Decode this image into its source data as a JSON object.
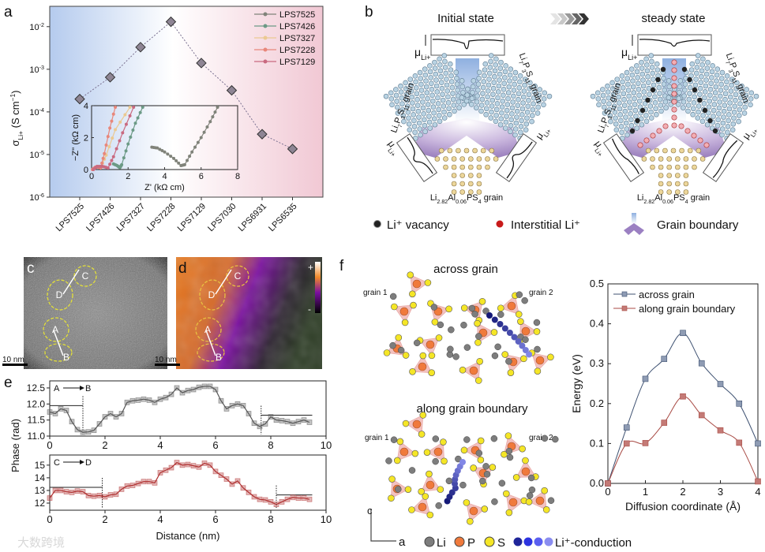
{
  "panels": {
    "a": "a",
    "b": "b",
    "c": "c",
    "d": "d",
    "e": "e",
    "f": "f"
  },
  "chart_data": [
    {
      "id": "a-main",
      "type": "line",
      "ylabel": "σLi+ (S cm−1)",
      "ylabel_parts": [
        [
          "σ",
          ""
        ],
        [
          "Li+",
          "sub"
        ],
        [
          " (S cm",
          ""
        ],
        [
          "−1",
          "sup"
        ],
        [
          ")",
          ""
        ]
      ],
      "yscale": "log",
      "ylim": [
        1e-06,
        0.03
      ],
      "yticks": [
        {
          "v": 1e-06,
          "label": "10",
          "exp": "-6"
        },
        {
          "v": 1e-05,
          "label": "10",
          "exp": "-5"
        },
        {
          "v": 0.0001,
          "label": "10",
          "exp": "-4"
        },
        {
          "v": 0.001,
          "label": "10",
          "exp": "-3"
        },
        {
          "v": 0.01,
          "label": "10",
          "exp": "-2"
        }
      ],
      "categories": [
        "LPS7525",
        "LPS7426",
        "LPS7327",
        "LPS7228",
        "LPS7129",
        "LPS7030",
        "LPS6931",
        "LPS6535"
      ],
      "values": [
        0.0002,
        0.00065,
        0.0033,
        0.013,
        0.0014,
        0.00032,
        3e-05,
        1.35e-05
      ],
      "marker": "diamond",
      "marker_color": "#8e8594",
      "background": [
        "#b7cdee",
        "#ffffff",
        "#f2cbd6"
      ]
    },
    {
      "id": "a-inset",
      "type": "line",
      "xlabel": "Z' (kΩ cm)",
      "ylabel": "−Z'' (kΩ cm)",
      "xlim": [
        0,
        8
      ],
      "ylim": [
        0,
        4
      ],
      "xticks": [
        "0",
        "2",
        "4",
        "6",
        "8"
      ],
      "yticks": [
        "0",
        "2",
        "4"
      ],
      "legend_position": "top-right of main plot",
      "series": [
        {
          "name": "LPS7525",
          "color": "#80837a",
          "points": [
            [
              3.3,
              1.4
            ],
            [
              3.6,
              1.35
            ],
            [
              4.0,
              1.1
            ],
            [
              4.5,
              0.7
            ],
            [
              4.9,
              0.25
            ],
            [
              5.1,
              0.3
            ],
            [
              5.5,
              1.1
            ],
            [
              6.0,
              2.0
            ],
            [
              6.5,
              3.0
            ],
            [
              6.9,
              3.9
            ]
          ]
        },
        {
          "name": "LPS7426",
          "color": "#6c9a86",
          "points": [
            [
              1.2,
              0.35
            ],
            [
              1.4,
              0.25
            ],
            [
              1.55,
              0.12
            ],
            [
              1.65,
              0.3
            ],
            [
              2.0,
              1.6
            ],
            [
              2.4,
              2.9
            ],
            [
              2.8,
              3.9
            ]
          ]
        },
        {
          "name": "LPS7327",
          "color": "#ebc992",
          "points": [
            [
              0.05,
              0
            ],
            [
              0.3,
              0.2
            ],
            [
              0.5,
              0.15
            ],
            [
              0.8,
              0.9
            ],
            [
              1.3,
              2.5
            ],
            [
              2.1,
              3.9
            ]
          ]
        },
        {
          "name": "LPS7228",
          "color": "#e8877b",
          "points": [
            [
              0.05,
              0
            ],
            [
              0.2,
              0.15
            ],
            [
              0.35,
              0.15
            ],
            [
              0.5,
              0.1
            ],
            [
              0.7,
              1.0
            ],
            [
              1.0,
              2.6
            ],
            [
              1.3,
              3.9
            ]
          ]
        },
        {
          "name": "LPS7129",
          "color": "#c96a80",
          "points": [
            [
              0.1,
              0
            ],
            [
              0.3,
              0.2
            ],
            [
              0.6,
              0.2
            ],
            [
              0.9,
              0.1
            ],
            [
              1.2,
              0.8
            ],
            [
              1.7,
              2.3
            ],
            [
              2.3,
              3.9
            ]
          ]
        }
      ]
    },
    {
      "id": "e-top",
      "type": "line",
      "annotation": "A → B",
      "arrow_from": "A",
      "arrow_to": "B",
      "xlim": [
        0,
        10
      ],
      "ylim": [
        11.0,
        12.72
      ],
      "xticks": [
        "0",
        "2",
        "4",
        "6",
        "8",
        "10"
      ],
      "yticks": [
        "11.0",
        "11.5",
        "12.0",
        "12.5"
      ],
      "color": "#555555",
      "levels": [
        {
          "x0": 0,
          "x1": 1.2,
          "y": 11.95
        },
        {
          "x0": 7.65,
          "x1": 9.5,
          "y": 11.65
        }
      ],
      "dividers": [
        1.2,
        7.65
      ],
      "x": [
        0,
        0.2,
        0.4,
        0.6,
        0.8,
        1.0,
        1.2,
        1.4,
        1.6,
        1.8,
        2.0,
        2.2,
        2.4,
        2.6,
        2.8,
        3.0,
        3.2,
        3.4,
        3.6,
        3.8,
        4.0,
        4.2,
        4.4,
        4.6,
        4.8,
        5.0,
        5.2,
        5.4,
        5.6,
        5.8,
        6.0,
        6.2,
        6.4,
        6.6,
        6.8,
        7.0,
        7.2,
        7.4,
        7.6,
        7.8,
        8.0,
        8.2,
        8.4,
        8.6,
        8.8,
        9.0,
        9.2,
        9.4
      ],
      "y": [
        11.75,
        11.7,
        11.85,
        11.8,
        11.45,
        11.2,
        11.12,
        11.13,
        11.18,
        11.38,
        11.6,
        11.7,
        11.6,
        11.7,
        12.05,
        12.1,
        12.12,
        12.15,
        12.12,
        12.05,
        12.15,
        12.2,
        12.3,
        12.5,
        12.35,
        12.42,
        12.45,
        12.52,
        12.55,
        12.55,
        12.45,
        12.1,
        11.85,
        11.95,
        12.0,
        11.95,
        11.7,
        11.4,
        11.3,
        11.38,
        11.6,
        11.5,
        11.48,
        11.45,
        11.4,
        11.45,
        11.5,
        11.43
      ]
    },
    {
      "id": "e-bottom",
      "type": "line",
      "annotation": "C → D",
      "arrow_from": "C",
      "arrow_to": "D",
      "xlabel": "Distance (nm)",
      "ylabel": "Phase (rad)",
      "xlim": [
        0,
        10
      ],
      "ylim": [
        11.44,
        15.8
      ],
      "xticks": [
        "0",
        "2",
        "4",
        "6",
        "8",
        "10"
      ],
      "yticks": [
        "12",
        "13",
        "14",
        "15"
      ],
      "color": "#b03030",
      "levels": [
        {
          "x0": 0,
          "x1": 1.9,
          "y": 13.25
        },
        {
          "x0": 8.2,
          "x1": 9.5,
          "y": 12.65
        }
      ],
      "dividers": [
        1.9,
        8.2
      ],
      "x": [
        0,
        0.2,
        0.4,
        0.6,
        0.8,
        1.0,
        1.2,
        1.4,
        1.6,
        1.8,
        2.0,
        2.2,
        2.4,
        2.6,
        2.8,
        3.0,
        3.2,
        3.4,
        3.6,
        3.8,
        4.0,
        4.2,
        4.4,
        4.6,
        4.8,
        5.0,
        5.2,
        5.4,
        5.6,
        5.8,
        6.0,
        6.2,
        6.4,
        6.6,
        6.8,
        7.0,
        7.2,
        7.4,
        7.6,
        7.8,
        8.0,
        8.2,
        8.4,
        8.6,
        8.8,
        9.0,
        9.2,
        9.4
      ],
      "y": [
        12.4,
        13.0,
        13.0,
        12.9,
        12.85,
        12.95,
        12.9,
        12.6,
        12.55,
        12.6,
        12.5,
        12.65,
        12.7,
        13.1,
        13.35,
        13.4,
        13.55,
        13.7,
        13.7,
        13.6,
        14.4,
        14.6,
        14.8,
        15.2,
        15.0,
        15.05,
        14.95,
        14.85,
        15.15,
        15.0,
        14.5,
        14.2,
        13.9,
        13.5,
        13.75,
        13.2,
        12.85,
        12.5,
        12.3,
        12.25,
        12.1,
        11.9,
        12.1,
        12.3,
        12.45,
        12.4,
        12.4,
        12.3
      ]
    },
    {
      "id": "f-energy",
      "type": "line",
      "xlabel": "Diffusion coordinate (Å)",
      "ylabel": "Energy (eV)",
      "xlim": [
        0,
        4
      ],
      "ylim": [
        0,
        0.5
      ],
      "xticks": [
        "0",
        "1",
        "2",
        "3",
        "4"
      ],
      "yticks": [
        "0.0",
        "0.1",
        "0.2",
        "0.3",
        "0.4",
        "0.5"
      ],
      "legend_position": "top-left",
      "x": [
        0,
        0.5,
        1,
        1.5,
        2,
        2.5,
        3,
        3.5,
        4
      ],
      "series": [
        {
          "name": "across grain",
          "color": "#3f5272",
          "marker_color": "#8e9bb3",
          "values": [
            0,
            0.14,
            0.262,
            0.312,
            0.377,
            0.301,
            0.249,
            0.2,
            0.1
          ]
        },
        {
          "name": "along grain boundary",
          "color": "#a84a44",
          "marker_color": "#c47a76",
          "values": [
            0,
            0.1,
            0.101,
            0.152,
            0.218,
            0.171,
            0.133,
            0.102,
            0.005
          ]
        }
      ]
    }
  ],
  "b": {
    "initial_title": "Initial state",
    "steady_title": "steady state",
    "mu": [
      [
        "μ",
        ""
      ],
      [
        "Li+",
        "sub"
      ]
    ],
    "upper_grain": [
      [
        "Li",
        ""
      ],
      [
        "7",
        "sub"
      ],
      [
        "P",
        ""
      ],
      [
        "3",
        "sub"
      ],
      [
        "S",
        ""
      ],
      [
        "11",
        "sub"
      ],
      [
        " grain",
        ""
      ]
    ],
    "lower_grain": [
      [
        "Li",
        ""
      ],
      [
        "2.82",
        "sub"
      ],
      [
        "Al",
        ""
      ],
      [
        "0.06",
        "sub"
      ],
      [
        "PS",
        ""
      ],
      [
        "4",
        "sub"
      ],
      [
        " grain",
        ""
      ]
    ],
    "legend": {
      "vacancy": "Li⁺ vacancy",
      "interstitial": "Interstitial Li⁺",
      "grain_boundary": "Grain boundary"
    },
    "colors": {
      "upper": "#b9d3e3",
      "lower": "#ecd69a",
      "vacancy": "#222222",
      "interstitial": "#f2aeb4",
      "boundary_blue": "#8fb0e0",
      "boundary_purple": "#8e6fb5"
    }
  },
  "c": {
    "label_A": "A",
    "label_B": "B",
    "label_C": "C",
    "label_D": "D",
    "scale": "10 nm"
  },
  "d": {
    "label_A": "A",
    "label_B": "B",
    "label_C": "C",
    "label_D": "D",
    "scale": "10 nm",
    "plus": "+",
    "minus": "-"
  },
  "f": {
    "across_title": "across grain",
    "along_title": "along grain boundary",
    "grain1": "grain 1",
    "grain2": "grain 2",
    "axis_c": "c",
    "axis_a": "a",
    "legend": {
      "li": "Li",
      "p": "P",
      "s": "S",
      "conduction": "Li⁺-conduction"
    },
    "colors": {
      "li": "#7d7d7d",
      "p": "#f07a3c",
      "s": "#f5e626",
      "conduction": "#3a3fd0",
      "tetra": "#f3c2c0"
    }
  },
  "watermark": "大数跨境"
}
